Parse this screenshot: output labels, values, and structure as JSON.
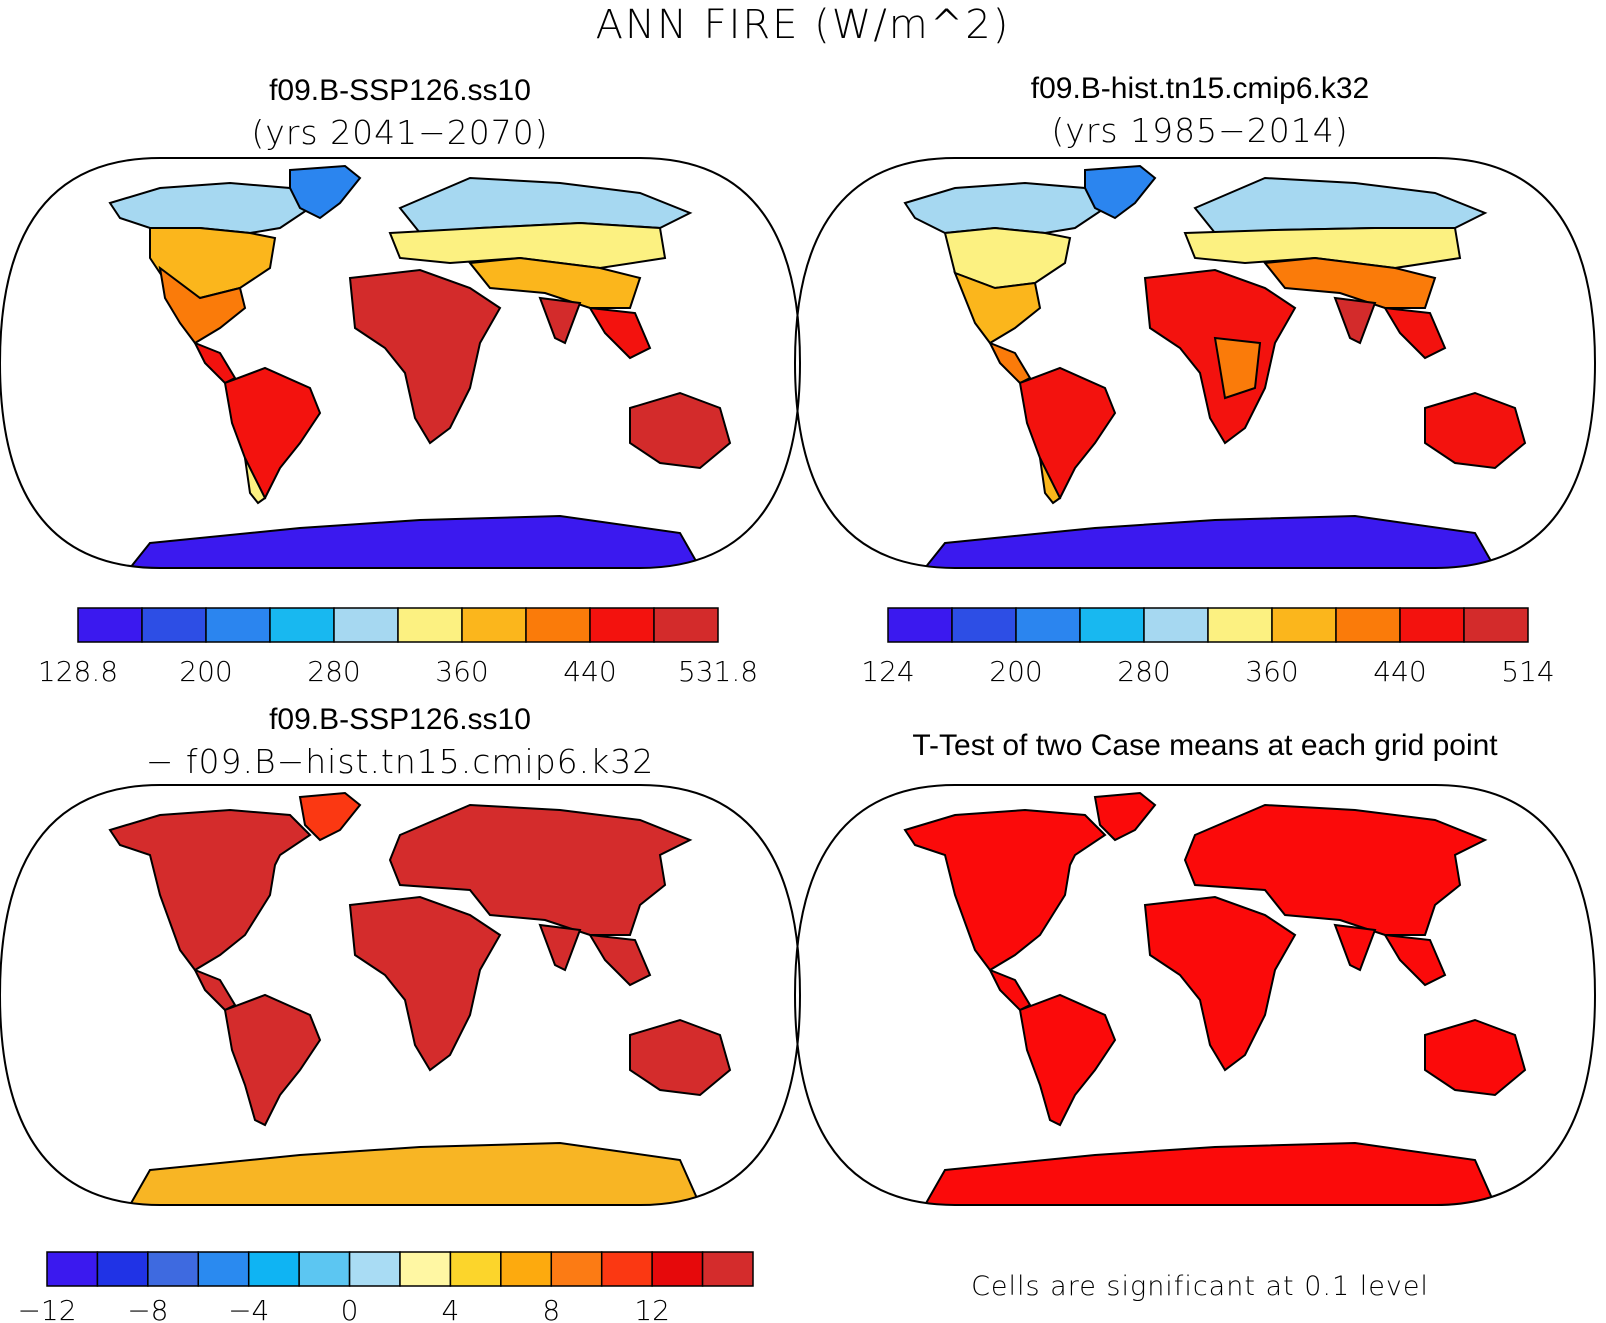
{
  "figure": {
    "title": "ANN FIRE (W/m^2)"
  },
  "panels": [
    {
      "id": "case1",
      "title": "f09.B-SSP126.ss10",
      "subtitle": "(yrs 2041−2070)",
      "field": "absolute",
      "colorbar": {
        "colors": [
          "#3b19ef",
          "#2d4ee5",
          "#2b85ef",
          "#18b8f0",
          "#a6d8f1",
          "#fcf181",
          "#fbb61c",
          "#fa7b0a",
          "#f3120e",
          "#d32b2b"
        ],
        "tick_labels": [
          "128.8",
          "200",
          "280",
          "360",
          "440",
          "531.8"
        ]
      }
    },
    {
      "id": "case2",
      "title": "f09.B-hist.tn15.cmip6.k32",
      "subtitle": "(yrs 1985−2014)",
      "field": "absolute",
      "colorbar": {
        "colors": [
          "#3b19ef",
          "#2d4ee5",
          "#2b85ef",
          "#18b8f0",
          "#a6d8f1",
          "#fcf181",
          "#fbb61c",
          "#fa7b0a",
          "#f3120e",
          "#d32b2b"
        ],
        "tick_labels": [
          "124",
          "200",
          "280",
          "360",
          "440",
          "514"
        ]
      }
    },
    {
      "id": "diff",
      "title": "f09.B-SSP126.ss10",
      "subtitle": "− f09.B−hist.tn15.cmip6.k32",
      "field": "difference",
      "colorbar": {
        "colors": [
          "#3b19ef",
          "#2033e6",
          "#3e6ae0",
          "#2a8af0",
          "#0fb4f3",
          "#5cc6f2",
          "#a9dcf4",
          "#fff7a3",
          "#fcd52b",
          "#fdaa0e",
          "#fc7b14",
          "#fb3812",
          "#e6090b",
          "#d42c2c"
        ],
        "tick_labels": [
          "−12",
          "−8",
          "−4",
          "0",
          "4",
          "8",
          "12"
        ]
      }
    },
    {
      "id": "ttest",
      "title": "T-Test of two Case means at each grid point",
      "field": "significance",
      "note": "Cells are significant at 0.1 level"
    }
  ],
  "colors": {
    "ttest_land": "#fb0a0a",
    "diff_land": "#d42c2c",
    "antarctica_diff": "#f8b524"
  }
}
